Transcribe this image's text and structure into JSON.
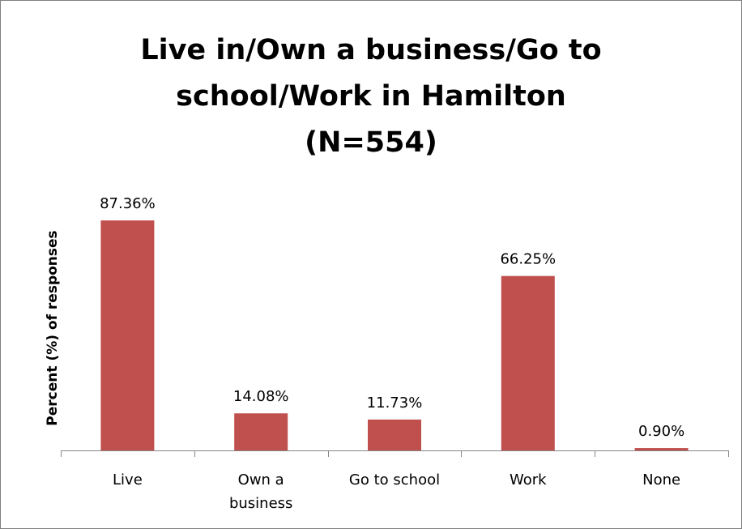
{
  "chart_data": {
    "type": "bar",
    "title_lines": [
      "Live in/Own a business/Go to",
      "school/Work in Hamilton",
      "(N=554)"
    ],
    "ylabel": "Percent (%) of responses",
    "xlabel": "",
    "categories": [
      [
        "Live"
      ],
      [
        "Own a",
        "business"
      ],
      [
        "Go to school"
      ],
      [
        "Work"
      ],
      [
        "None"
      ]
    ],
    "values": [
      87.36,
      14.08,
      11.73,
      66.25,
      0.9
    ],
    "data_labels": [
      "87.36%",
      "14.08%",
      "11.73%",
      "66.25%",
      "0.90%"
    ],
    "ylim": [
      0,
      100
    ],
    "grid": false,
    "legend": "none",
    "bar_color": "#c0504d",
    "axis_color": "#868686"
  }
}
